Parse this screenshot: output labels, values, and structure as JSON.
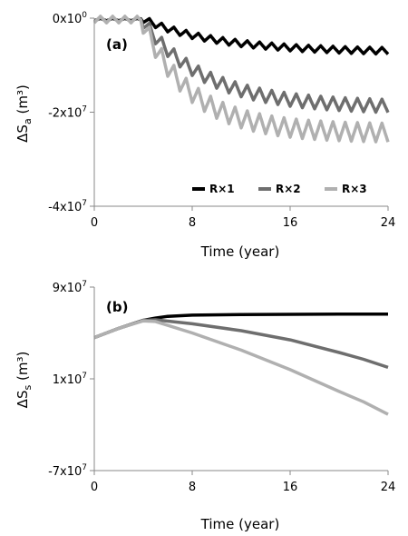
{
  "chart_data": [
    {
      "type": "line",
      "panel_label": "(a)",
      "title": "",
      "xlabel": "Time (year)",
      "ylabel_parts": {
        "main": "ΔS",
        "sub": "a",
        "unit": " (m³)"
      },
      "xlim": [
        0,
        24
      ],
      "ylim": [
        -40000000,
        0
      ],
      "x_ticks": [
        0,
        8,
        16,
        24
      ],
      "x_tick_labels": [
        "0",
        "8",
        "16",
        "24"
      ],
      "y_ticks": [
        0,
        -20000000,
        -40000000
      ],
      "y_tick_labels": [
        {
          "base": "0x10",
          "exp": "0"
        },
        {
          "base": "-2x10",
          "exp": "7"
        },
        {
          "base": "-4x10",
          "exp": "7"
        }
      ],
      "grid": false,
      "legend_position": "bottom-right",
      "series": [
        {
          "name": "R×1",
          "color": "#000000",
          "start": 0,
          "base_end": -7200000,
          "base_tau": 6,
          "amplitude": 1400000
        },
        {
          "name": "R×2",
          "color": "#6e6e6e",
          "start": 0,
          "base_end": -19000000,
          "base_tau": 5,
          "base_slope": 0,
          "amplitude": 2800000
        },
        {
          "name": "R×3",
          "color": "#b0b0b0",
          "start": 0,
          "base_end": -24500000,
          "base_tau": 4,
          "amplitude": 4000000
        }
      ],
      "pumping_start_year": 3.8
    },
    {
      "type": "line",
      "panel_label": "(b)",
      "title": "",
      "xlabel": "Time (year)",
      "ylabel_parts": {
        "main": "ΔS",
        "sub": "s",
        "unit": " (m³)"
      },
      "xlim": [
        0,
        24
      ],
      "ylim": [
        -70000000,
        90000000
      ],
      "x_ticks": [
        0,
        8,
        16,
        24
      ],
      "x_tick_labels": [
        "0",
        "8",
        "16",
        "24"
      ],
      "y_ticks": [
        90000000,
        10000000,
        -70000000
      ],
      "y_tick_labels": [
        {
          "base": "9x10",
          "exp": "7"
        },
        {
          "base": "1x10",
          "exp": "7"
        },
        {
          "base": "-7x10",
          "exp": "7"
        }
      ],
      "grid": false,
      "series": [
        {
          "name": "R×1",
          "color": "#000000",
          "points": [
            [
              0,
              46000000
            ],
            [
              2,
              54000000
            ],
            [
              4,
              61000000
            ],
            [
              5,
              63000000
            ],
            [
              6,
              64500000
            ],
            [
              8,
              65500000
            ],
            [
              12,
              66000000
            ],
            [
              16,
              66200000
            ],
            [
              20,
              66400000
            ],
            [
              24,
              66500000
            ]
          ]
        },
        {
          "name": "R×2",
          "color": "#6e6e6e",
          "points": [
            [
              0,
              46000000
            ],
            [
              2,
              54000000
            ],
            [
              4,
              61000000
            ],
            [
              5,
              61500000
            ],
            [
              8,
              58000000
            ],
            [
              12,
              52000000
            ],
            [
              16,
              44000000
            ],
            [
              20,
              33000000
            ],
            [
              22,
              27000000
            ],
            [
              24,
              20000000
            ]
          ]
        },
        {
          "name": "R×3",
          "color": "#b0b0b0",
          "points": [
            [
              0,
              46000000
            ],
            [
              2,
              54000000
            ],
            [
              4,
              60500000
            ],
            [
              5,
              60000000
            ],
            [
              8,
              50000000
            ],
            [
              12,
              35000000
            ],
            [
              16,
              18000000
            ],
            [
              20,
              -1000000
            ],
            [
              22,
              -10000000
            ],
            [
              24,
              -21000000
            ]
          ]
        }
      ]
    }
  ]
}
